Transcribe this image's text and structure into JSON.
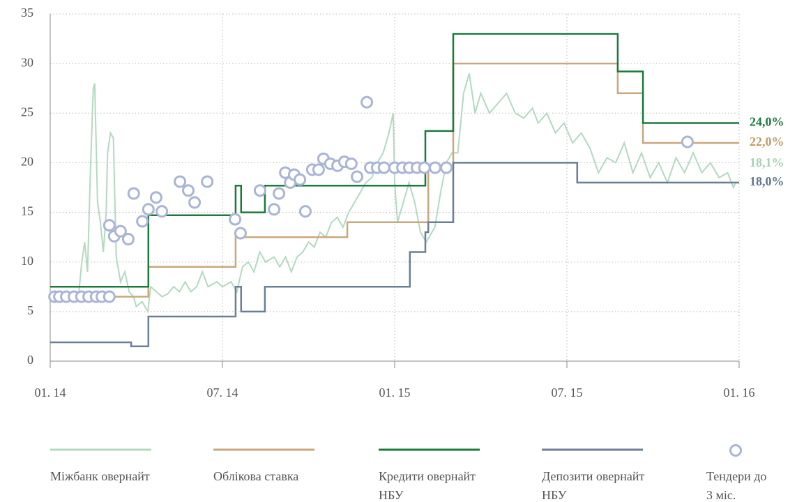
{
  "chart_data": {
    "type": "line",
    "xlim": [
      0,
      24
    ],
    "xticks": [
      {
        "value": 0,
        "label": "01. 14"
      },
      {
        "value": 6,
        "label": "07. 14"
      },
      {
        "value": 12,
        "label": "01. 15"
      },
      {
        "value": 18,
        "label": "07. 15"
      },
      {
        "value": 24,
        "label": "01. 16"
      }
    ],
    "ylim": [
      0,
      35
    ],
    "yticks": [
      0,
      5,
      10,
      15,
      20,
      25,
      30,
      35
    ],
    "grid": true,
    "legend": "bottom",
    "series": [
      {
        "name": "Міжбанк овернайт",
        "color": "#b3d9bf",
        "label_color": "#a6d1b3",
        "x": [
          0,
          0.3,
          0.6,
          0.8,
          1.0,
          1.1,
          1.2,
          1.3,
          1.4,
          1.5,
          1.55,
          1.65,
          1.75,
          1.85,
          1.95,
          2.0,
          2.1,
          2.2,
          2.3,
          2.45,
          2.6,
          2.75,
          2.9,
          3.0,
          3.2,
          3.4,
          3.5,
          3.7,
          3.9,
          4.1,
          4.3,
          4.5,
          4.7,
          4.9,
          5.1,
          5.3,
          5.5,
          5.8,
          6.0,
          6.3,
          6.5,
          6.7,
          6.9,
          7.1,
          7.3,
          7.5,
          7.8,
          8.0,
          8.2,
          8.4,
          8.6,
          8.8,
          9.0,
          9.2,
          9.4,
          9.6,
          9.8,
          10.0,
          10.2,
          10.4,
          10.6,
          10.8,
          11.0,
          11.2,
          11.4,
          11.6,
          11.8,
          11.95,
          12.0,
          12.1,
          12.3,
          12.5,
          12.7,
          12.9,
          13.1,
          13.4,
          13.6,
          13.8,
          14.0,
          14.2,
          14.4,
          14.6,
          14.8,
          15.0,
          15.3,
          15.6,
          15.9,
          16.2,
          16.5,
          16.8,
          17.0,
          17.3,
          17.6,
          17.9,
          18.2,
          18.5,
          18.8,
          19.1,
          19.4,
          19.7,
          20.0,
          20.3,
          20.6,
          20.9,
          21.2,
          21.5,
          21.8,
          22.1,
          22.4,
          22.7,
          23.0,
          23.3,
          23.6,
          23.8,
          23.9
        ],
        "values": [
          7,
          6,
          6.2,
          6.5,
          7,
          10,
          12,
          9,
          19,
          27.5,
          28,
          16,
          14,
          11,
          15,
          21,
          23,
          22.5,
          10.5,
          8,
          9,
          7,
          6.5,
          5.5,
          6,
          5,
          7.5,
          7,
          6.5,
          6.8,
          7.5,
          7,
          8,
          7,
          7.5,
          9,
          7.5,
          8,
          7.5,
          8,
          7,
          9.5,
          10,
          9,
          11,
          10,
          10.5,
          9.5,
          10.5,
          9,
          10.5,
          11,
          12,
          11.5,
          13,
          12.5,
          14,
          14.5,
          13.5,
          15,
          16,
          17,
          18,
          18.5,
          20,
          21,
          23,
          25,
          18,
          14,
          16,
          18,
          16,
          13,
          12,
          13.5,
          17,
          20,
          21,
          21,
          27,
          29,
          25,
          27,
          25,
          26,
          27,
          25,
          24.5,
          25.5,
          24,
          25,
          23,
          24,
          22,
          23,
          21.5,
          19,
          20.5,
          20,
          22,
          19,
          21,
          18.5,
          20,
          18,
          20.5,
          19,
          21,
          19,
          20,
          18.5,
          19,
          17.5,
          18.1
        ],
        "value_labels": [
          null,
          null,
          null,
          null,
          null,
          null,
          null,
          null,
          null,
          null,
          null,
          null,
          null,
          null,
          null,
          null,
          null,
          null,
          null,
          null,
          null,
          null,
          null,
          null,
          null,
          null,
          null,
          null,
          null,
          null,
          null,
          null,
          null,
          null,
          null,
          null,
          null,
          null,
          null,
          null,
          null,
          null,
          null,
          null,
          null,
          null,
          null,
          null,
          null,
          null,
          null,
          null,
          null,
          null,
          null,
          null,
          null,
          null,
          null,
          null,
          null,
          null,
          null,
          null,
          null,
          null,
          null,
          null,
          null,
          null,
          null,
          null,
          null,
          null,
          null,
          null,
          null,
          null,
          null,
          null,
          null,
          null,
          null,
          null,
          null,
          null,
          null,
          null,
          null,
          null,
          null,
          null,
          null,
          null,
          null,
          null,
          null,
          null,
          null,
          null,
          null,
          null,
          null,
          null,
          null,
          null,
          null,
          null,
          null,
          null,
          null,
          null,
          null,
          null,
          "18,1%"
        ]
      },
      {
        "name": "Облікова ставка",
        "color": "#c8a77e",
        "label_color": "#c49a62",
        "x": [
          0,
          3.42,
          3.42,
          6.46,
          6.46,
          10.35,
          10.35,
          13.17,
          13.17,
          14.04,
          14.04,
          19.77,
          19.77,
          20.65,
          20.65,
          24
        ],
        "values": [
          6.5,
          6.5,
          9.5,
          9.5,
          12.5,
          12.5,
          14,
          14,
          19.5,
          19.5,
          30,
          30,
          27,
          27,
          22,
          22
        ],
        "value_labels": [
          null,
          null,
          null,
          null,
          null,
          null,
          null,
          null,
          null,
          null,
          null,
          null,
          null,
          null,
          null,
          "22,0%"
        ]
      },
      {
        "name": "Кредити овернайт НБУ",
        "color": "#1a7a3c",
        "label_color": "#1a7a3c",
        "x": [
          0,
          3.42,
          3.42,
          6.46,
          6.46,
          6.65,
          6.65,
          7.48,
          7.48,
          13.07,
          13.07,
          14.04,
          14.04,
          19.77,
          19.77,
          20.65,
          20.65,
          24
        ],
        "values": [
          7.5,
          7.5,
          14.7,
          14.7,
          17.7,
          17.7,
          15,
          15,
          17.7,
          17.7,
          23.2,
          23.2,
          33,
          33,
          29.2,
          29.2,
          24,
          24
        ],
        "value_labels": [
          null,
          null,
          null,
          null,
          null,
          null,
          null,
          null,
          null,
          null,
          null,
          null,
          null,
          null,
          null,
          null,
          null,
          "24,0%"
        ]
      },
      {
        "name": "Депозити овернайт НБУ",
        "color": "#6a7e96",
        "label_color": "#5f7590",
        "x": [
          0,
          2.82,
          2.82,
          3.42,
          3.42,
          6.46,
          6.46,
          6.65,
          6.65,
          7.48,
          7.48,
          12.53,
          12.53,
          13.07,
          13.07,
          13.17,
          13.17,
          14.04,
          14.04,
          18.36,
          18.36,
          24
        ],
        "values": [
          1.9,
          1.9,
          1.5,
          1.5,
          4.5,
          4.5,
          7.5,
          7.5,
          5,
          5,
          7.5,
          7.5,
          11,
          11,
          13,
          13,
          14,
          14,
          20,
          20,
          18,
          18
        ],
        "value_labels": [
          null,
          null,
          null,
          null,
          null,
          null,
          null,
          null,
          null,
          null,
          null,
          null,
          null,
          null,
          null,
          null,
          null,
          null,
          null,
          null,
          null,
          "18,0%"
        ]
      },
      {
        "name": "Тендери до 3 міс.",
        "type": "scatter",
        "color": "#aab4d4",
        "x": [
          0.15,
          0.32,
          0.56,
          0.83,
          1.09,
          1.34,
          1.6,
          1.8,
          2.06,
          2.06,
          2.23,
          2.45,
          2.72,
          2.91,
          3.21,
          3.42,
          3.69,
          3.89,
          4.52,
          4.81,
          5.03,
          5.47,
          6.44,
          6.63,
          7.31,
          7.8,
          7.97,
          8.19,
          8.36,
          8.5,
          8.7,
          8.89,
          9.13,
          9.35,
          9.52,
          9.76,
          10.01,
          10.25,
          10.49,
          10.69,
          11.03,
          11.15,
          11.39,
          11.63,
          12.0,
          12.27,
          12.51,
          12.78,
          13.04,
          13.41,
          13.8,
          22.2
        ],
        "values": [
          6.5,
          6.5,
          6.5,
          6.5,
          6.5,
          6.5,
          6.5,
          6.5,
          6.5,
          13.7,
          12.6,
          13.1,
          12.3,
          16.9,
          14.1,
          15.3,
          16.5,
          15.1,
          18.1,
          17.2,
          16.0,
          18.1,
          14.3,
          12.9,
          17.2,
          15.3,
          16.9,
          19.0,
          18.0,
          18.8,
          18.3,
          15.1,
          19.3,
          19.3,
          20.4,
          19.9,
          19.7,
          20.1,
          19.9,
          18.6,
          26.1,
          19.5,
          19.5,
          19.5,
          19.5,
          19.5,
          19.5,
          19.5,
          19.5,
          19.5,
          19.5,
          22.1
        ]
      }
    ]
  }
}
